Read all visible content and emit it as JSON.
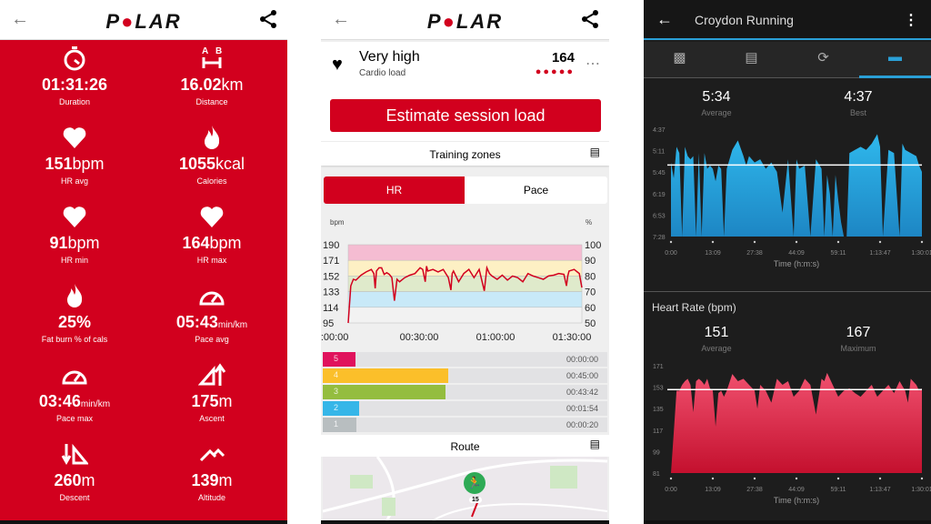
{
  "polar_summary": {
    "logo": "POLAR",
    "stats": [
      {
        "icon": "stopwatch-icon",
        "value": "01:31:26",
        "unit": "",
        "label": "Duration"
      },
      {
        "icon": "distance-ab-icon",
        "value": "16.02",
        "unit": "km",
        "label": "Distance"
      },
      {
        "icon": "heart-icon",
        "value": "151",
        "unit": "bpm",
        "label": "HR avg"
      },
      {
        "icon": "flame-icon",
        "value": "1055",
        "unit": "kcal",
        "label": "Calories"
      },
      {
        "icon": "heart-icon",
        "value": "91",
        "unit": "bpm",
        "label": "HR min"
      },
      {
        "icon": "heart-icon",
        "value": "164",
        "unit": "bpm",
        "label": "HR max"
      },
      {
        "icon": "flame-icon",
        "value": "25%",
        "unit": "",
        "label": "Fat burn % of cals"
      },
      {
        "icon": "speedometer-icon",
        "value": "05:43",
        "unit": "min/km",
        "label": "Pace avg"
      },
      {
        "icon": "speedometer-icon",
        "value": "03:46",
        "unit": "min/km",
        "label": "Pace max"
      },
      {
        "icon": "ascent-icon",
        "value": "175",
        "unit": "m",
        "label": "Ascent"
      },
      {
        "icon": "descent-icon",
        "value": "260",
        "unit": "m",
        "label": "Descent"
      },
      {
        "icon": "altitude-icon",
        "value": "139",
        "unit": "m",
        "label": "Altitude"
      }
    ]
  },
  "polar_detail": {
    "logo": "POLAR",
    "cardio": {
      "level": "Very high",
      "label": "Cardio load",
      "value": "164",
      "dots": 5
    },
    "estimate_button": "Estimate session load",
    "training_zones_label": "Training zones",
    "tabs": [
      {
        "label": "HR",
        "active": true
      },
      {
        "label": "Pace",
        "active": false
      }
    ],
    "route_label": "Route",
    "map_marker": "15",
    "zones": [
      {
        "zone": "5",
        "time": "00:00:00",
        "color": "#e0125c"
      },
      {
        "zone": "4",
        "time": "00:45:00",
        "color": "#fbbf2a"
      },
      {
        "zone": "3",
        "time": "00:43:42",
        "color": "#94bd3f"
      },
      {
        "zone": "2",
        "time": "00:01:54",
        "color": "#36b6e8"
      },
      {
        "zone": "1",
        "time": "00:00:20",
        "color": "#b8bec0"
      }
    ]
  },
  "garmin": {
    "title": "Croydon Running",
    "tabs": [
      "photo-icon",
      "details-icon",
      "laps-icon",
      "charts-icon"
    ],
    "active_tab": 3,
    "pace": {
      "average": "5:34",
      "average_label": "Average",
      "best": "4:37",
      "best_label": "Best"
    },
    "hr": {
      "title": "Heart Rate (bpm)",
      "average": "151",
      "average_label": "Average",
      "max": "167",
      "max_label": "Maximum"
    }
  },
  "chart_data": [
    {
      "type": "line",
      "id": "polar-hr",
      "ylabel": "bpm",
      "y2label": "%",
      "ylim": [
        95,
        190
      ],
      "yticks": [
        "190",
        "171",
        "152",
        "133",
        "114",
        "95"
      ],
      "y2ticks": [
        "100",
        "90",
        "80",
        "70",
        "60",
        "50"
      ],
      "xticks": [
        "00:00:00",
        "00:30:00",
        "01:00:00",
        "01:30:00"
      ],
      "xlim_min": [
        0,
        91
      ],
      "bands": [
        {
          "from": 171,
          "to": 190,
          "color": "#f5bcd2"
        },
        {
          "from": 152,
          "to": 171,
          "color": "#fdf0c4"
        },
        {
          "from": 133,
          "to": 152,
          "color": "#dfeacb"
        },
        {
          "from": 114,
          "to": 133,
          "color": "#c8e9f8"
        },
        {
          "from": 95,
          "to": 114,
          "color": "#f2f2f2"
        }
      ],
      "x": [
        0,
        1,
        2,
        3,
        5,
        7,
        9,
        10,
        10.5,
        11,
        12,
        13,
        14,
        15,
        16,
        17,
        18,
        19,
        20,
        22,
        24,
        26,
        28,
        29,
        30,
        30.5,
        31,
        33,
        35,
        37,
        39,
        40,
        40.5,
        41,
        43,
        45,
        47,
        49,
        51,
        53,
        54,
        55,
        56,
        58,
        60,
        62,
        64,
        66,
        68,
        70,
        72,
        74,
        76,
        78,
        80,
        82,
        84,
        85,
        85.5,
        86,
        88,
        90,
        91
      ],
      "values": [
        95,
        140,
        148,
        147,
        153,
        157,
        160,
        155,
        137,
        158,
        162,
        162,
        154,
        156,
        154,
        150,
        122,
        148,
        145,
        150,
        153,
        155,
        162,
        160,
        145,
        164,
        158,
        160,
        157,
        160,
        150,
        135,
        155,
        158,
        145,
        155,
        160,
        150,
        160,
        134,
        162,
        155,
        152,
        148,
        153,
        147,
        152,
        150,
        145,
        155,
        152,
        150,
        148,
        152,
        153,
        155,
        154,
        140,
        152,
        158,
        160,
        155,
        138
      ]
    },
    {
      "type": "area",
      "id": "garmin-pace",
      "yticks": [
        "4:37",
        "5:11",
        "5:45",
        "6:19",
        "6:53",
        "7:28"
      ],
      "ylim": [
        "7:28",
        "4:37"
      ],
      "xticks": [
        "0:00",
        "13:09",
        "27:38",
        "44:09",
        "59:11",
        "1:13:47",
        "1:30:01"
      ],
      "xlabel": "Time (h:m:s)",
      "reference_line": "5:34",
      "xlim_min": [
        0,
        90
      ],
      "x": [
        0,
        1,
        2,
        3,
        4,
        5,
        6,
        7,
        8,
        9,
        10,
        11,
        12,
        13,
        14,
        15,
        16,
        17,
        18,
        19,
        20,
        22,
        24,
        26,
        27,
        28,
        30,
        32,
        34,
        36,
        38,
        40,
        42,
        44,
        45,
        46,
        48,
        50,
        52,
        54,
        55,
        56,
        57,
        58,
        59,
        60,
        61,
        62,
        63,
        64,
        66,
        68,
        70,
        72,
        74,
        75,
        76,
        78,
        80,
        82,
        83,
        84,
        86,
        88,
        89,
        90
      ],
      "values": [
        "5:30",
        "5:55",
        "5:05",
        "5:15",
        "7:28",
        "5:05",
        "5:20",
        "5:25",
        "5:20",
        "7:28",
        "5:15",
        "7:28",
        "5:15",
        "5:40",
        "5:35",
        "5:40",
        "6:00",
        "5:35",
        "5:40",
        "7:28",
        "5:40",
        "5:10",
        "4:55",
        "5:20",
        "5:35",
        "5:20",
        "5:30",
        "5:25",
        "5:40",
        "5:30",
        "5:45",
        "6:50",
        "5:25",
        "7:28",
        "5:25",
        "5:40",
        "5:35",
        "7:28",
        "5:25",
        "5:40",
        "7:28",
        "5:50",
        "6:20",
        "7:28",
        "5:50",
        "6:30",
        "7:05",
        "7:28",
        "7:28",
        "5:15",
        "5:10",
        "5:05",
        "5:10",
        "5:00",
        "4:45",
        "5:05",
        "7:28",
        "5:10",
        "5:15",
        "7:28",
        "5:00",
        "5:10",
        "5:15",
        "5:20",
        "5:35",
        "5:45"
      ]
    },
    {
      "type": "area",
      "id": "garmin-hr",
      "yticks": [
        "171",
        "153",
        "135",
        "117",
        "99",
        "81"
      ],
      "ylim": [
        81,
        171
      ],
      "xticks": [
        "0:00",
        "13:09",
        "27:38",
        "44:09",
        "59:11",
        "1:13:47",
        "1:30:01"
      ],
      "xlabel": "Time (h:m:s)",
      "reference_line": 151,
      "xlim_min": [
        0,
        90
      ],
      "x": [
        0,
        1,
        2,
        3,
        4,
        5,
        6,
        7,
        8,
        9,
        10,
        11,
        12,
        13,
        14,
        15,
        16,
        17,
        18,
        19,
        20,
        22,
        24,
        26,
        28,
        30,
        31,
        32,
        34,
        36,
        38,
        40,
        42,
        44,
        46,
        48,
        50,
        52,
        54,
        55,
        56,
        58,
        60,
        62,
        64,
        66,
        68,
        70,
        72,
        74,
        76,
        78,
        80,
        82,
        84,
        85,
        86,
        88,
        89,
        90
      ],
      "values": [
        81,
        115,
        150,
        150,
        155,
        158,
        160,
        155,
        132,
        158,
        160,
        158,
        155,
        160,
        152,
        150,
        120,
        148,
        150,
        145,
        150,
        164,
        158,
        160,
        155,
        150,
        135,
        155,
        150,
        140,
        160,
        155,
        158,
        145,
        150,
        160,
        155,
        130,
        160,
        158,
        165,
        155,
        145,
        150,
        152,
        148,
        145,
        150,
        155,
        145,
        150,
        155,
        148,
        158,
        150,
        140,
        160,
        155,
        150,
        152
      ]
    }
  ]
}
